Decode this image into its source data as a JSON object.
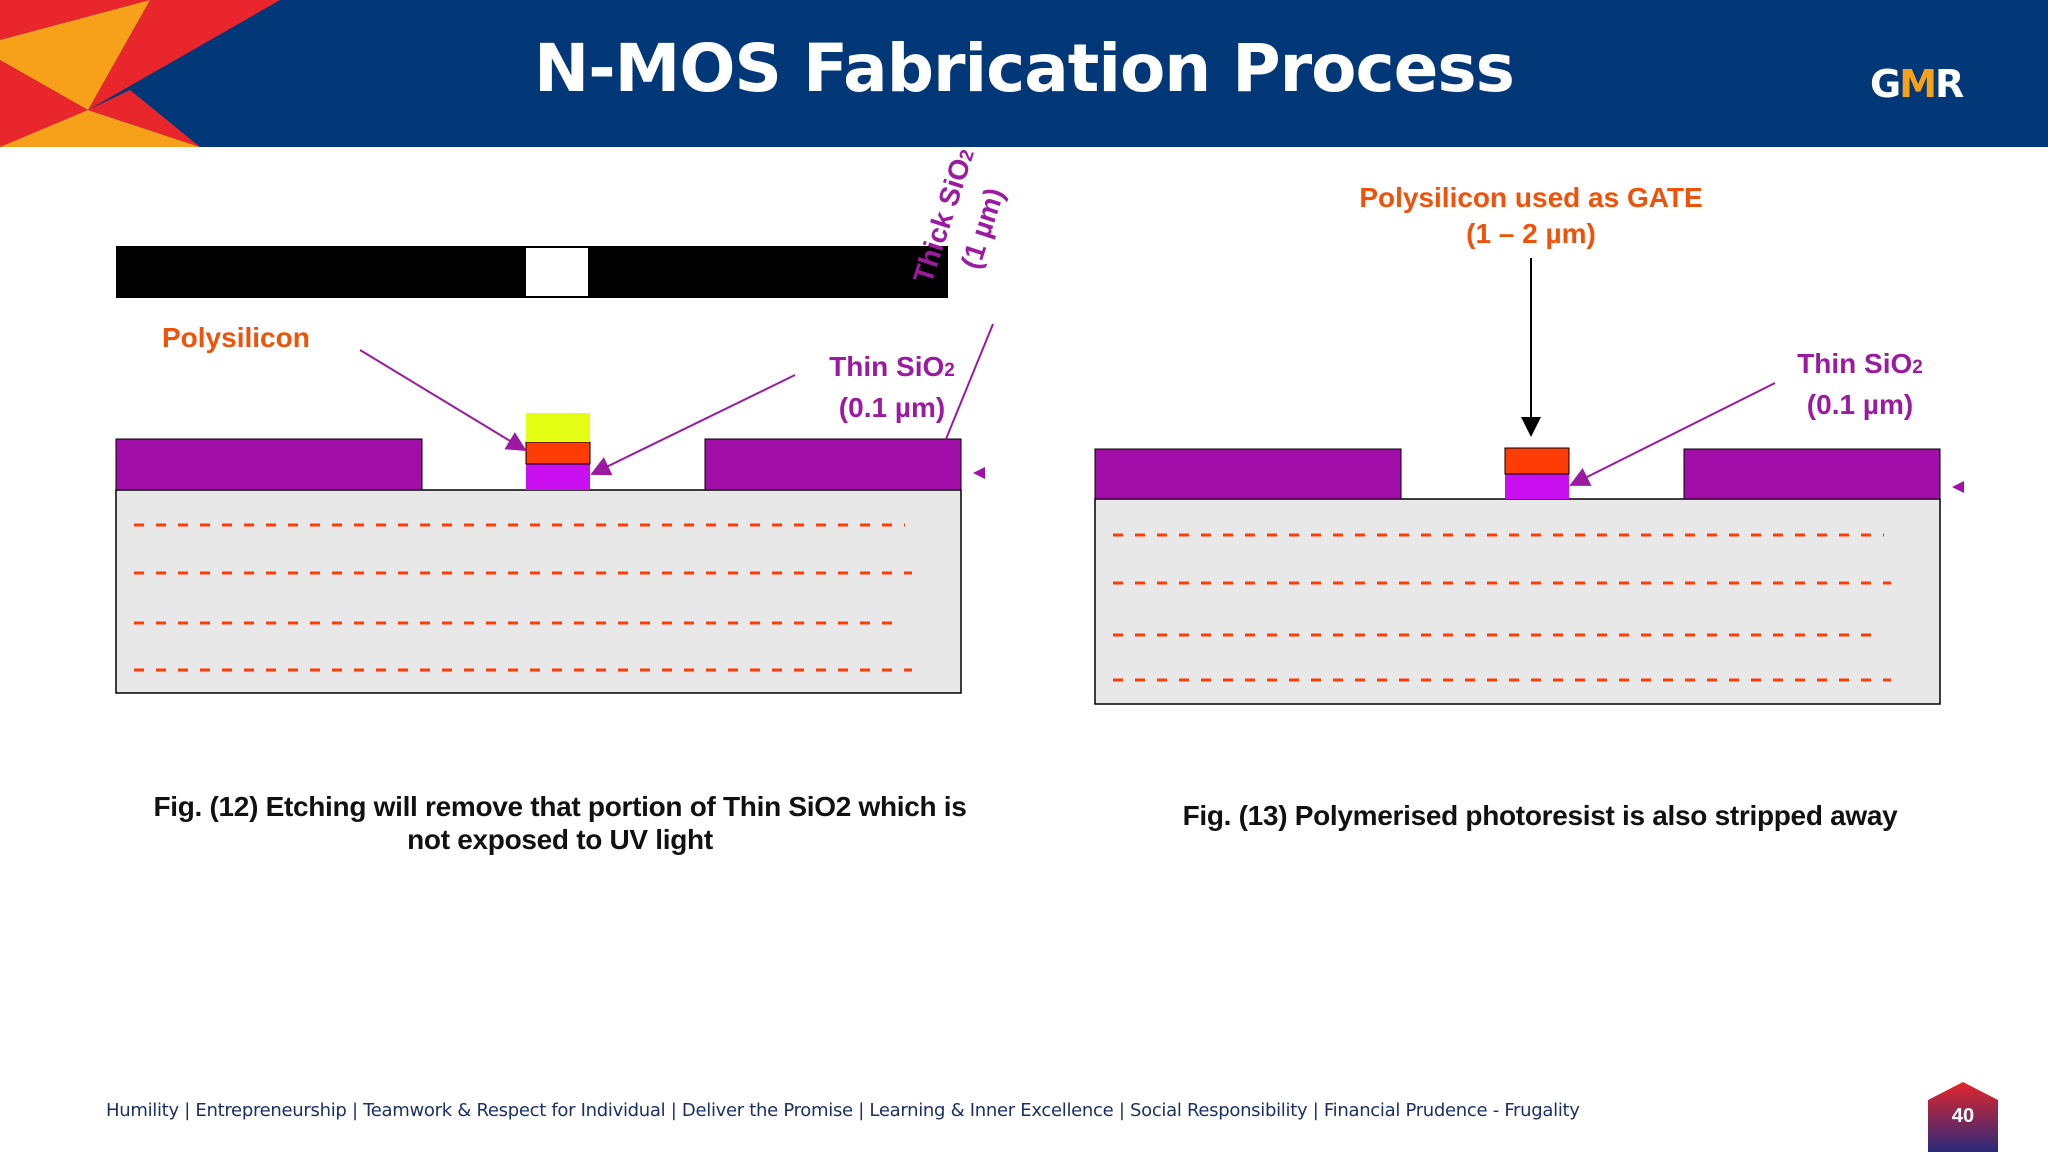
{
  "header": {
    "title": "N-MOS Fabrication Process",
    "logo": {
      "left": "G",
      "middle": "M",
      "right": "R"
    },
    "colors": {
      "background": "#023878",
      "accent_red": "#e8262b",
      "accent_orange": "#f7a11a"
    }
  },
  "fig12": {
    "polysilicon_label": "Polysilicon",
    "thin_sio2_label": "Thin SiO",
    "thin_sio2_sub": "2",
    "thin_sio2_value": "(0.1 µm)",
    "thick_sio2_label": "Thick SiO",
    "thick_sio2_sub": "2",
    "thick_sio2_value": "(1 µm)",
    "caption_line1": "Fig. (12) Etching will remove that portion of Thin SiO2 which is",
    "caption_line2": "not exposed to UV light"
  },
  "fig13": {
    "gate_label_line1": "Polysilicon used as GATE",
    "gate_label_line2": "(1 – 2 µm)",
    "thin_sio2_label": "Thin SiO",
    "thin_sio2_sub": "2",
    "thin_sio2_value": "(0.1 µm)",
    "caption": "Fig. (13) Polymerised photoresist is also stripped away"
  },
  "colors": {
    "thick_oxide": "#a20ea8",
    "thin_oxide": "#c90ef0",
    "polysilicon": "#fe3c06",
    "photoresist": "#e3fe12",
    "substrate": "#e8e8e8",
    "dopant_dashes": "#fe3c06",
    "mask": "#000000"
  },
  "footer": {
    "values": "Humility | Entrepreneurship | Teamwork & Respect for Individual | Deliver the Promise | Learning & Inner Excellence | Social Responsibility | Financial Prudence - Frugality",
    "page_number": "40"
  }
}
